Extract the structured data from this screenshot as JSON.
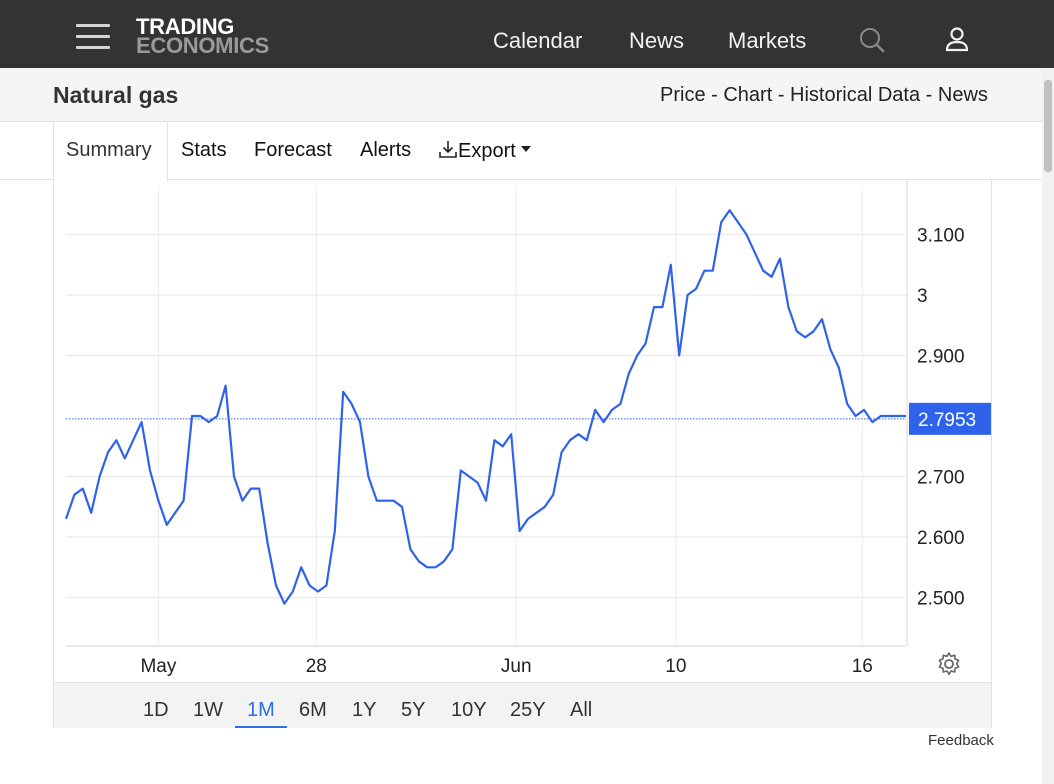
{
  "header": {
    "logo_line1": "TRADING",
    "logo_line2": "ECONOMICS",
    "nav": [
      "Calendar",
      "News",
      "Markets"
    ]
  },
  "page": {
    "title": "Natural gas",
    "links": [
      "Price",
      "Chart",
      "Historical Data",
      "News"
    ],
    "link_separator": " - "
  },
  "tabs": {
    "summary": "Summary",
    "stats": "Stats",
    "forecast": "Forecast",
    "alerts": "Alerts",
    "export": "Export"
  },
  "ranges": [
    "1D",
    "1W",
    "1M",
    "6M",
    "1Y",
    "5Y",
    "10Y",
    "25Y",
    "All"
  ],
  "active_range": "1M",
  "feedback": "Feedback",
  "colors": {
    "line": "#2e62ea",
    "accent": "#2d6fe6",
    "topbar": "#333333"
  },
  "chart_data": {
    "type": "line",
    "series_color": "#2e62ea",
    "ylim": [
      2.42,
      3.18
    ],
    "xlim": [
      0,
      100
    ],
    "y_ticks": [
      {
        "value": 3.1,
        "label": "3.100"
      },
      {
        "value": 3.0,
        "label": "3"
      },
      {
        "value": 2.9,
        "label": "2.900"
      },
      {
        "value": 2.7,
        "label": "2.700"
      },
      {
        "value": 2.6,
        "label": "2.600"
      },
      {
        "value": 2.5,
        "label": "2.500"
      }
    ],
    "x_ticks": [
      {
        "value": 11,
        "label": "May"
      },
      {
        "value": 29.8,
        "label": "28"
      },
      {
        "value": 53.6,
        "label": "Jun"
      },
      {
        "value": 72.6,
        "label": "10"
      },
      {
        "value": 94.8,
        "label": "16"
      }
    ],
    "last_value": 2.7953,
    "last_value_label": "2.7953",
    "x": [
      0,
      1,
      2,
      3,
      4,
      5,
      6,
      7,
      8,
      9,
      10,
      11,
      12,
      13,
      14,
      15,
      16,
      17,
      18,
      19,
      20,
      21,
      22,
      23,
      24,
      25,
      26,
      27,
      28,
      29,
      30,
      31,
      32,
      33,
      34,
      35,
      36,
      37,
      38,
      39,
      40,
      41,
      42,
      43,
      44,
      45,
      46,
      47,
      48,
      49,
      50,
      51,
      52,
      53,
      54,
      55,
      56,
      57,
      58,
      59,
      60,
      61,
      62,
      63,
      64,
      65,
      66,
      67,
      68,
      69,
      70,
      71,
      72,
      73,
      74,
      75,
      76,
      77,
      78,
      79,
      80,
      81,
      82,
      83,
      84,
      85,
      86,
      87,
      88,
      89,
      90,
      91,
      92,
      93,
      94,
      95,
      96,
      97,
      98,
      99,
      100
    ],
    "y": [
      2.63,
      2.67,
      2.68,
      2.64,
      2.7,
      2.74,
      2.76,
      2.73,
      2.76,
      2.79,
      2.71,
      2.66,
      2.62,
      2.64,
      2.66,
      2.8,
      2.8,
      2.79,
      2.8,
      2.85,
      2.7,
      2.66,
      2.68,
      2.68,
      2.59,
      2.52,
      2.49,
      2.51,
      2.55,
      2.52,
      2.51,
      2.52,
      2.61,
      2.84,
      2.82,
      2.79,
      2.7,
      2.66,
      2.66,
      2.66,
      2.65,
      2.58,
      2.56,
      2.55,
      2.55,
      2.56,
      2.58,
      2.71,
      2.7,
      2.69,
      2.66,
      2.76,
      2.75,
      2.77,
      2.61,
      2.63,
      2.64,
      2.65,
      2.67,
      2.74,
      2.76,
      2.77,
      2.76,
      2.81,
      2.79,
      2.81,
      2.82,
      2.87,
      2.9,
      2.92,
      2.98,
      2.98,
      3.05,
      2.9,
      3.0,
      3.01,
      3.04,
      3.04,
      3.12,
      3.14,
      3.12,
      3.1,
      3.07,
      3.04,
      3.03,
      3.06,
      2.98,
      2.94,
      2.93,
      2.94,
      2.96,
      2.91,
      2.88,
      2.82,
      2.8,
      2.81,
      2.79,
      2.8,
      2.8,
      2.8,
      2.8
    ]
  }
}
